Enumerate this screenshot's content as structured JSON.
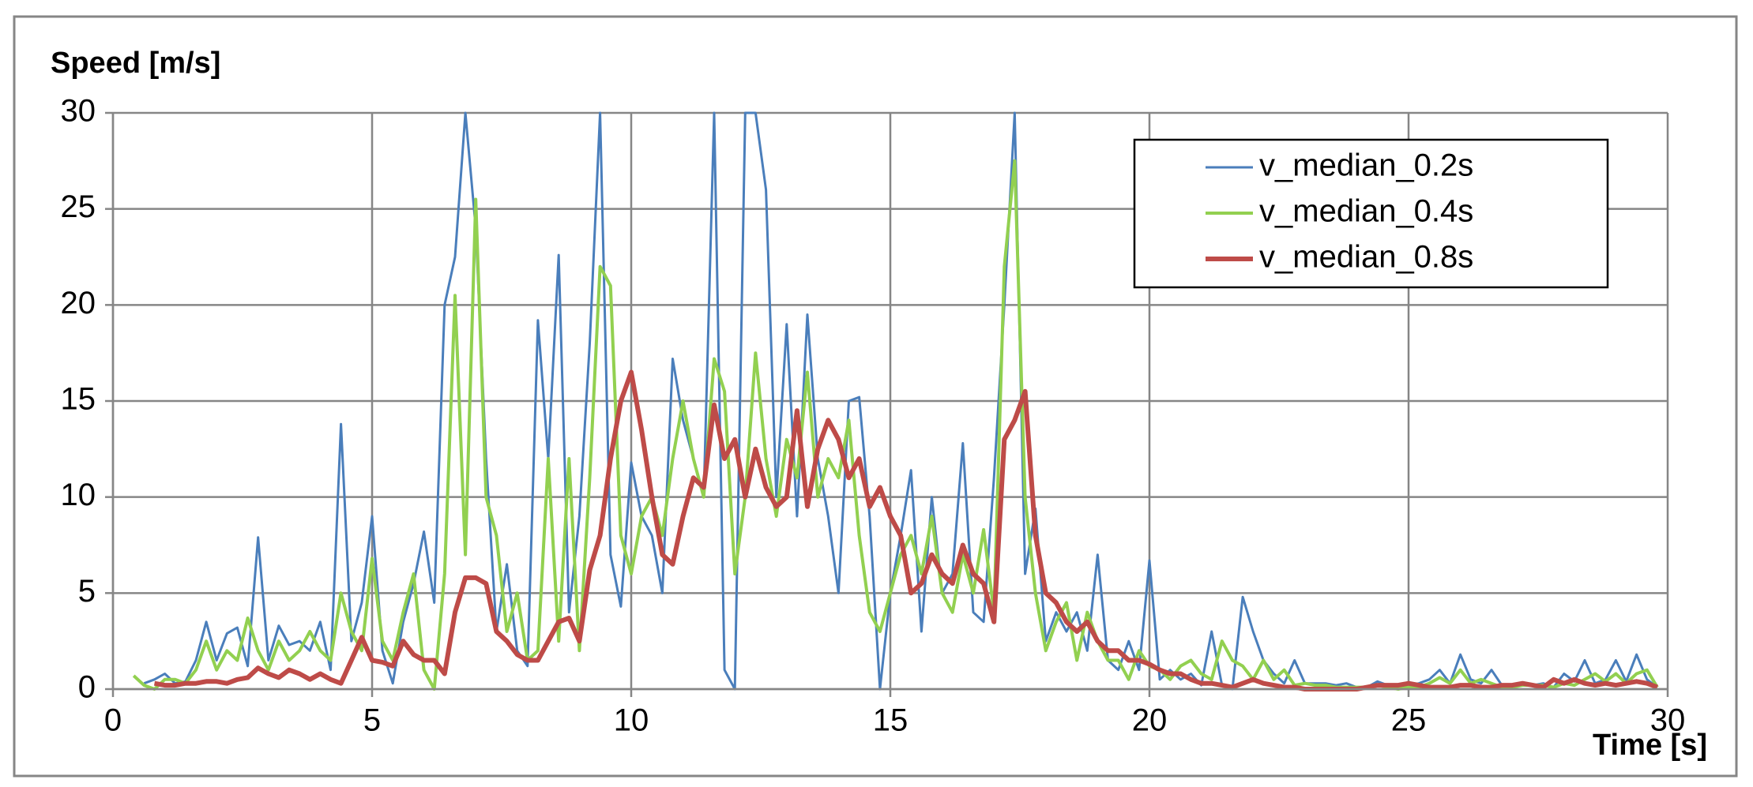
{
  "chart_data": {
    "type": "line",
    "y_label": "Speed [m/s]",
    "x_label": "Time [s]",
    "xlim": [
      0,
      30
    ],
    "xticks": [
      0,
      5,
      10,
      15,
      20,
      25,
      30
    ],
    "ylim": [
      0,
      30
    ],
    "yticks": [
      0,
      5,
      10,
      15,
      20,
      25,
      30
    ],
    "grid": true,
    "legend": "upper right",
    "x": [
      0.4,
      0.6,
      0.8,
      1,
      1.2,
      1.4,
      1.6,
      1.8,
      2,
      2.2,
      2.4,
      2.6,
      2.8,
      3,
      3.2,
      3.4,
      3.6,
      3.8,
      4,
      4.2,
      4.4,
      4.6,
      4.8,
      5,
      5.2,
      5.4,
      5.6,
      5.8,
      6,
      6.2,
      6.4,
      6.6,
      6.8,
      7,
      7.2,
      7.4,
      7.6,
      7.8,
      8,
      8.2,
      8.4,
      8.6,
      8.8,
      9,
      9.2,
      9.4,
      9.6,
      9.8,
      10,
      10.2,
      10.4,
      10.6,
      10.8,
      11,
      11.2,
      11.4,
      11.6,
      11.8,
      12,
      12.2,
      12.4,
      12.6,
      12.8,
      13,
      13.2,
      13.4,
      13.6,
      13.8,
      14,
      14.2,
      14.4,
      14.6,
      14.8,
      15,
      15.2,
      15.4,
      15.6,
      15.8,
      16,
      16.2,
      16.4,
      16.6,
      16.8,
      17,
      17.2,
      17.4,
      17.6,
      17.8,
      18,
      18.2,
      18.4,
      18.6,
      18.8,
      19,
      19.2,
      19.4,
      19.6,
      19.8,
      20,
      20.2,
      20.4,
      20.6,
      20.8,
      21,
      21.2,
      21.4,
      21.6,
      21.8,
      22,
      22.2,
      22.4,
      22.6,
      22.8,
      23,
      23.2,
      23.4,
      23.6,
      23.8,
      24,
      24.2,
      24.4,
      24.6,
      24.8,
      25,
      25.2,
      25.4,
      25.6,
      25.8,
      26,
      26.2,
      26.4,
      26.6,
      26.8,
      27,
      27.2,
      27.4,
      27.6,
      27.8,
      28,
      28.2,
      28.4,
      28.6,
      28.8,
      29,
      29.2,
      29.4,
      29.6,
      29.8
    ],
    "series": [
      {
        "name": "v_median_0.2s",
        "color": "#4a7ebb",
        "width": 3,
        "values": [
          null,
          0.3,
          0.5,
          0.8,
          0.3,
          0.4,
          1.5,
          3.5,
          1.5,
          2.9,
          3.2,
          1.2,
          7.9,
          1.5,
          3.3,
          2.3,
          2.5,
          2,
          3.5,
          1,
          13.8,
          2.5,
          4.5,
          9,
          2,
          0.3,
          3.5,
          5.5,
          8.2,
          4.5,
          20,
          22.5,
          30,
          24,
          12,
          3,
          6.5,
          2,
          1.2,
          19.2,
          12,
          22.6,
          4,
          9,
          18,
          30,
          7,
          4.3,
          11.8,
          9,
          8,
          5,
          17.2,
          14,
          12,
          10,
          30,
          1,
          0,
          30,
          30,
          26,
          10,
          19,
          9,
          19.5,
          12,
          9,
          5,
          15,
          15.2,
          9,
          0,
          5,
          8,
          11.4,
          3,
          10,
          5,
          6,
          12.8,
          4,
          3.5,
          11,
          20,
          30,
          6,
          9.4,
          2.5,
          4,
          3,
          4,
          2,
          7,
          1.5,
          1,
          2.5,
          1,
          6.7,
          0.5,
          1,
          0.5,
          0.8,
          0.2,
          3,
          0.2,
          0,
          4.8,
          3,
          1.5,
          0.8,
          0.3,
          1.5,
          0.3,
          0.3,
          0.3,
          0.2,
          0.3,
          0.1,
          0.1,
          0.4,
          0.2,
          0,
          0.2,
          0.3,
          0.5,
          1,
          0.3,
          1.8,
          0.5,
          0.3,
          1,
          0.2,
          0.1,
          0.2,
          0.2,
          0.3,
          0.1,
          0.8,
          0.4,
          1.5,
          0.3,
          0.5,
          1.5,
          0.4,
          1.8,
          0.5,
          0.1
        ]
      },
      {
        "name": "v_median_0.4s",
        "color": "#92d050",
        "width": 4,
        "values": [
          0.7,
          0.2,
          0,
          0.5,
          0.5,
          0.3,
          1,
          2.5,
          1,
          2,
          1.5,
          3.7,
          2,
          1,
          2.5,
          1.5,
          2,
          3,
          2,
          1.5,
          5,
          3,
          2,
          6.8,
          2.5,
          1.5,
          4,
          6,
          1,
          0,
          6,
          20.5,
          7,
          25.5,
          10,
          8,
          3,
          5,
          1.5,
          2,
          12,
          2.5,
          12,
          2,
          11,
          22,
          21,
          8,
          6,
          9,
          10,
          8,
          12,
          15,
          12,
          10,
          17.2,
          15.5,
          6,
          10,
          17.5,
          12,
          9,
          13,
          11,
          16.5,
          10,
          12,
          11,
          14,
          8,
          4,
          3,
          5,
          7,
          8,
          6,
          9,
          5,
          4,
          7,
          5,
          8.3,
          4,
          22,
          27.5,
          10,
          5,
          2,
          3.5,
          4.5,
          1.5,
          4,
          2.5,
          1.5,
          1.5,
          0.5,
          2,
          1.2,
          1,
          0.5,
          1.2,
          1.5,
          0.8,
          0.5,
          2.5,
          1.5,
          1.2,
          0.5,
          1.5,
          0.5,
          1,
          0.2,
          0.3,
          0.2,
          0.2,
          0.1,
          0.1,
          0.1,
          0.1,
          0.2,
          0.1,
          0,
          0.1,
          0.1,
          0.3,
          0.6,
          0.3,
          1,
          0.3,
          0.5,
          0.3,
          0.1,
          0.1,
          0.2,
          0.2,
          0.2,
          0.1,
          0.3,
          0.2,
          0.5,
          0.8,
          0.4,
          0.8,
          0.3,
          0.8,
          1,
          0.1
        ]
      },
      {
        "name": "v_median_0.8s",
        "color": "#be4b48",
        "width": 6,
        "values": [
          null,
          null,
          0.3,
          0.2,
          0.2,
          0.3,
          0.3,
          0.4,
          0.4,
          0.3,
          0.5,
          0.6,
          1.1,
          0.8,
          0.6,
          1,
          0.8,
          0.5,
          0.8,
          0.5,
          0.3,
          1.5,
          2.7,
          1.5,
          1.4,
          1.2,
          2.5,
          1.8,
          1.5,
          1.5,
          0.8,
          4,
          5.8,
          5.8,
          5.5,
          3,
          2.5,
          1.8,
          1.5,
          1.5,
          2.5,
          3.5,
          3.7,
          2.5,
          6.2,
          8,
          12,
          15,
          16.5,
          13.5,
          10,
          7,
          6.5,
          9,
          11,
          10.5,
          14.8,
          12,
          13,
          10,
          12.5,
          10.5,
          9.5,
          10,
          14.5,
          9.5,
          12.5,
          14,
          13,
          11,
          12,
          9.5,
          10.5,
          9,
          8,
          5,
          5.5,
          7,
          6,
          5.5,
          7.5,
          6,
          5.5,
          3.5,
          13,
          14,
          15.5,
          8,
          5,
          4.5,
          3.5,
          3,
          3.5,
          2.5,
          2,
          2,
          1.5,
          1.5,
          1.3,
          1,
          0.8,
          0.8,
          0.5,
          0.3,
          0.3,
          0.2,
          0.1,
          0.3,
          0.5,
          0.3,
          0.2,
          0.1,
          0.1,
          0,
          0,
          0,
          0,
          0,
          0,
          0.1,
          0.2,
          0.2,
          0.2,
          0.3,
          0.2,
          0.1,
          0.1,
          0.1,
          0.2,
          0.2,
          0.1,
          0.1,
          0.2,
          0.2,
          0.3,
          0.2,
          0.1,
          0.5,
          0.3,
          0.5,
          0.3,
          0.2,
          0.3,
          0.2,
          0.3,
          0.4,
          0.3,
          0.1
        ]
      }
    ]
  }
}
